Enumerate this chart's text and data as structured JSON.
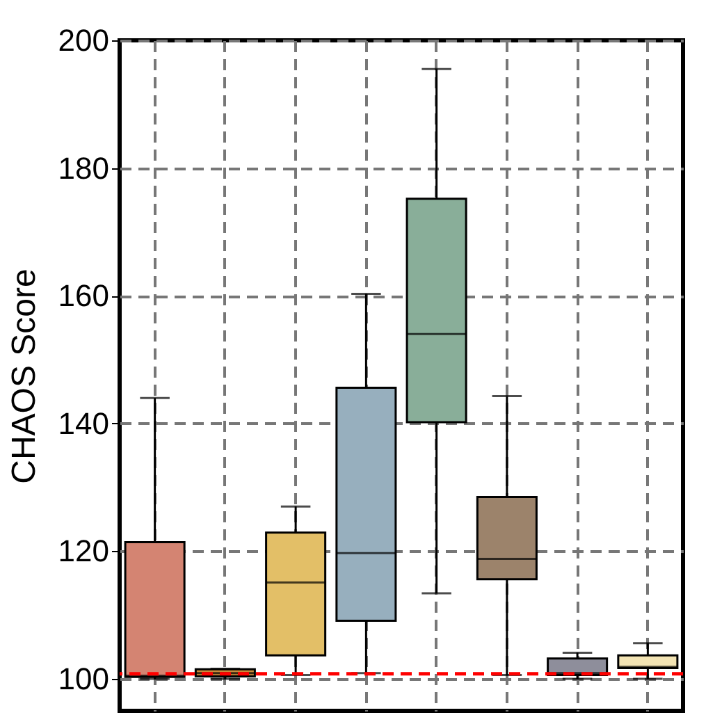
{
  "chart_data": {
    "type": "box",
    "ylabel": "CHAOS Score",
    "categories": [
      null,
      null,
      null,
      null,
      null,
      null,
      null,
      null
    ],
    "colors": [
      "#d48472",
      "#c98a3a",
      "#e3bf67",
      "#97afbe",
      "#89ae99",
      "#9c836b",
      "#8e8e9b",
      "#f2e3b3"
    ],
    "boxes": [
      {
        "low": 100,
        "q1": 100.3,
        "median": 100.5,
        "q3": 121.4,
        "high": 144
      },
      {
        "low": 100,
        "q1": 100.4,
        "median": 100.9,
        "q3": 101.5,
        "high": 101.6
      },
      {
        "low": 100.6,
        "q1": 103.7,
        "median": 115.1,
        "q3": 122.9,
        "high": 127
      },
      {
        "low": 100.9,
        "q1": 109.1,
        "median": 119.7,
        "q3": 145.6,
        "high": 160.3
      },
      {
        "low": 113.4,
        "q1": 140.2,
        "median": 154,
        "q3": 175.2,
        "high": 195.5
      },
      {
        "low": 100.6,
        "q1": 115.6,
        "median": 118.8,
        "q3": 128.5,
        "high": 144.3
      },
      {
        "low": 100,
        "q1": 100.6,
        "median": 100.9,
        "q3": 103.2,
        "high": 104.1
      },
      {
        "low": 100,
        "q1": 101.7,
        "median": 101.9,
        "q3": 103.7,
        "high": 105.6
      }
    ],
    "ylim": [
      95,
      200
    ],
    "yticks": [
      100,
      120,
      140,
      160,
      180,
      200
    ],
    "ref_lines": [
      {
        "axis": "y",
        "value": 100.8,
        "color": "#ff0000",
        "line_style": "dashed"
      }
    ],
    "grid": true,
    "tick_labels": "y"
  }
}
